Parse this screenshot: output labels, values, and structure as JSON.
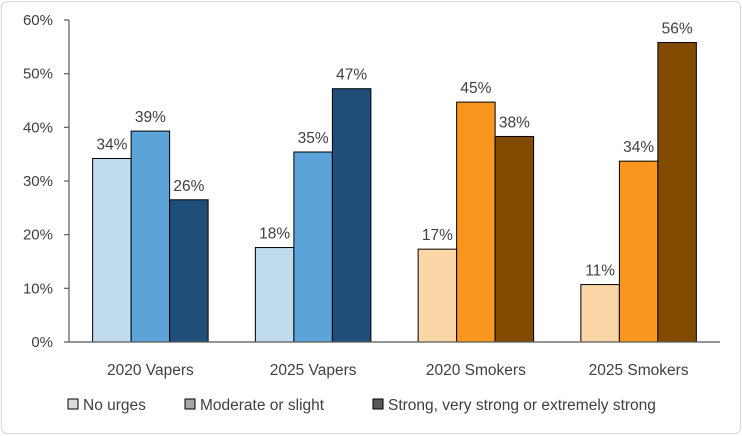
{
  "chart_data": {
    "type": "bar",
    "categories": [
      "2020 Vapers",
      "2025 Vapers",
      "2020 Smokers",
      "2025 Smokers"
    ],
    "series": [
      {
        "name": "No urges",
        "values": [
          34,
          18,
          17,
          11
        ]
      },
      {
        "name": "Moderate or slight",
        "values": [
          39,
          35,
          45,
          34
        ]
      },
      {
        "name": "Strong, very strong or extremely strong",
        "values": [
          26,
          47,
          38,
          56
        ]
      }
    ],
    "data_labels": [
      [
        "34%",
        "18%",
        "17%",
        "11%"
      ],
      [
        "39%",
        "35%",
        "45%",
        "34%"
      ],
      [
        "26%",
        "47%",
        "38%",
        "56%"
      ]
    ],
    "bar_values_precise": [
      [
        34.2,
        17.6,
        17.3,
        10.7
      ],
      [
        39.3,
        35.4,
        44.7,
        33.7
      ],
      [
        26.5,
        47.2,
        38.3,
        55.8
      ]
    ],
    "ylim": [
      0,
      60
    ],
    "yticks": [
      0,
      10,
      20,
      30,
      40,
      50,
      60
    ],
    "ytick_labels": [
      "0%",
      "10%",
      "20%",
      "30%",
      "40%",
      "50%",
      "60%"
    ],
    "grid": false,
    "legend_position": "bottom",
    "legend_swatch_colors": [
      "#dcdcdc",
      "#a6a6a6",
      "#595959"
    ],
    "colors": {
      "vapers": [
        "#c0dbee",
        "#5ba3d9",
        "#1f4e79"
      ],
      "smokers": [
        "#fbd7a7",
        "#f8961e",
        "#834b00"
      ],
      "axis": "#595959",
      "text": "#404040"
    }
  }
}
